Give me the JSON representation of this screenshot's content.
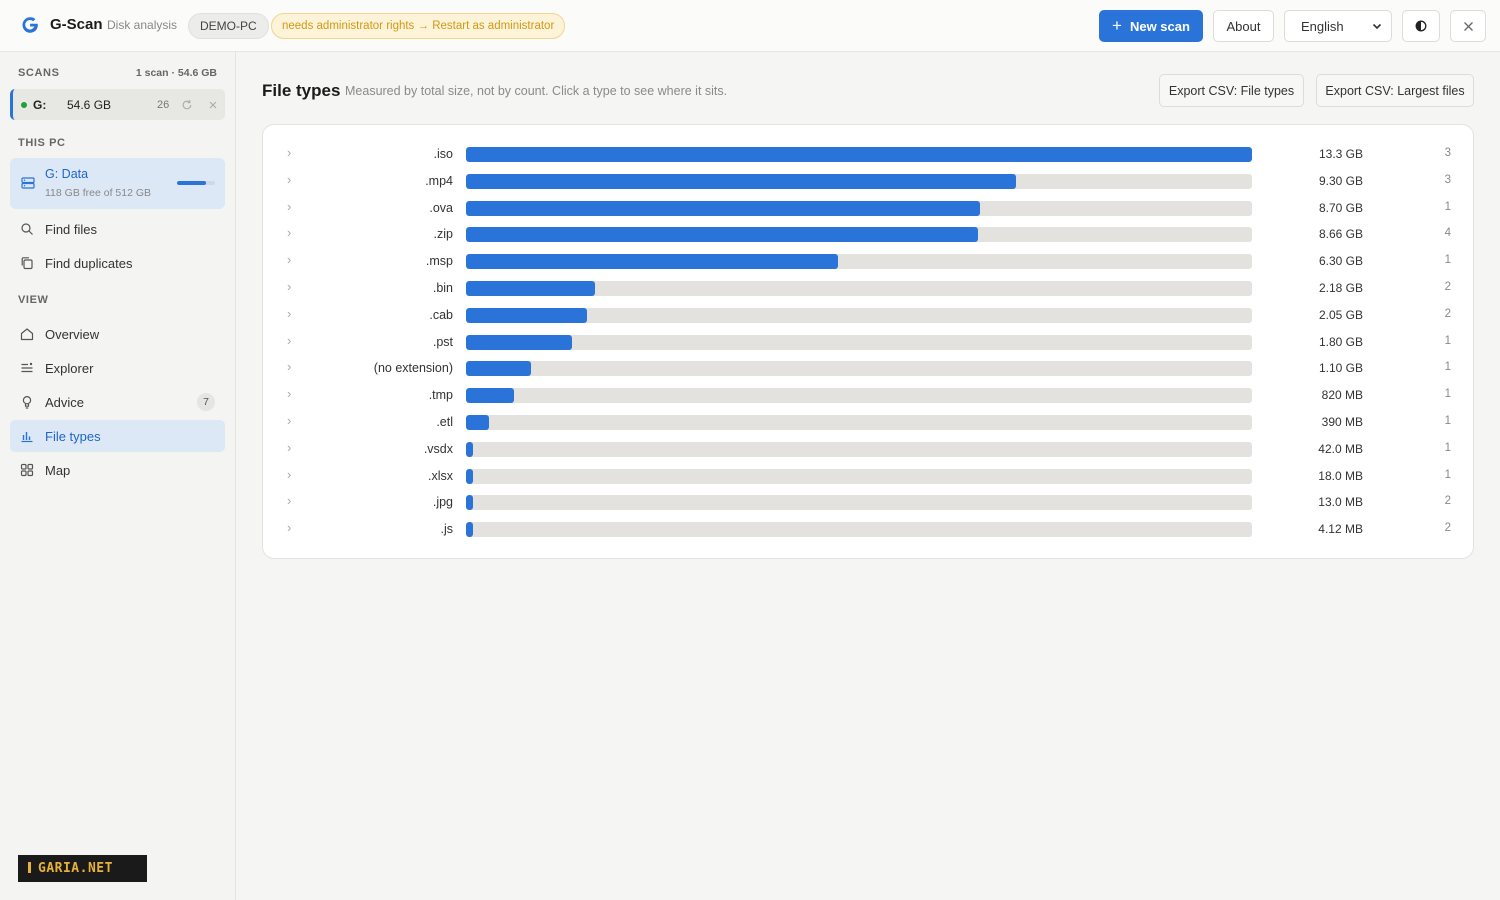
{
  "app": {
    "name": "G-Scan",
    "subtitle": "Disk analysis",
    "pc_name": "DEMO-PC",
    "admin_warning": "needs administrator rights → Restart as administrator"
  },
  "toolbar": {
    "new_scan_label": "New scan",
    "about_label": "About",
    "language": "English",
    "theme_icon": "contrast-icon",
    "close_icon": "close-icon"
  },
  "sidebar": {
    "scans_label": "SCANS",
    "scans_meta": "1 scan · 54.6 GB",
    "scan": {
      "drive": "G:",
      "size": "54.6 GB",
      "count": "26",
      "status_color": "#1fa13a"
    },
    "this_pc_label": "THIS PC",
    "drive_card": {
      "title": "G: Data",
      "free": "118 GB free of 512 GB",
      "used_fraction": 0.77
    },
    "tools": [
      {
        "label": "Find files",
        "icon": "search-icon"
      },
      {
        "label": "Find duplicates",
        "icon": "copy-icon"
      }
    ],
    "view_label": "VIEW",
    "views": [
      {
        "label": "Overview",
        "icon": "home-icon"
      },
      {
        "label": "Explorer",
        "icon": "list-icon"
      },
      {
        "label": "Advice",
        "icon": "lightbulb-icon",
        "badge": "7"
      },
      {
        "label": "File types",
        "icon": "bar-chart-icon",
        "active": true
      },
      {
        "label": "Map",
        "icon": "grid-icon"
      }
    ]
  },
  "main": {
    "title": "File types",
    "description": "Measured by total size, not by count. Click a type to see where it sits.",
    "export_types_label": "Export CSV: File types",
    "export_largest_label": "Export CSV: Largest files"
  },
  "colors": {
    "accent": "#2a73d9",
    "track": "#e3e2de",
    "warning_text": "#d19a16",
    "warning_bg": "#fdf3d9"
  },
  "watermark": "GARIA.NET",
  "chart_data": {
    "type": "bar",
    "categories": [
      ".iso",
      ".mp4",
      ".ova",
      ".zip",
      ".msp",
      ".bin",
      ".cab",
      ".pst",
      "(no extension)",
      ".tmp",
      ".etl",
      ".vsdx",
      ".xlsx",
      ".jpg",
      ".js"
    ],
    "values_gb": [
      13.3,
      9.3,
      8.7,
      8.66,
      6.3,
      2.18,
      2.05,
      1.8,
      1.1,
      0.82,
      0.39,
      0.042,
      0.018,
      0.013,
      0.00412
    ],
    "size_labels": [
      "13.3 GB",
      "9.30 GB",
      "8.70 GB",
      "8.66 GB",
      "6.30 GB",
      "2.18 GB",
      "2.05 GB",
      "1.80 GB",
      "1.10 GB",
      "820 MB",
      "390 MB",
      "42.0 MB",
      "18.0 MB",
      "13.0 MB",
      "4.12 MB"
    ],
    "counts": [
      "3",
      "3",
      "1",
      "4",
      "1",
      "2",
      "2",
      "1",
      "1",
      "1",
      "1",
      "1",
      "1",
      "2",
      "2"
    ],
    "max": 13.3
  }
}
